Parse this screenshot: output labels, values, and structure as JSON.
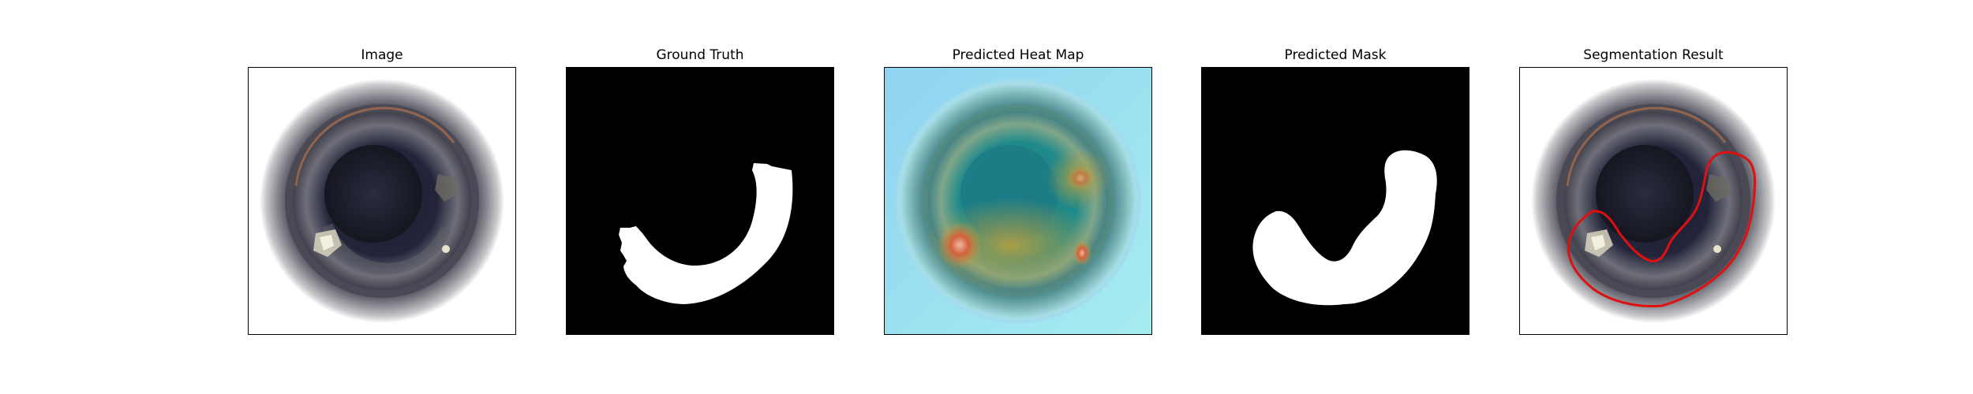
{
  "figure": {
    "panels": [
      {
        "id": "image",
        "title": "Image"
      },
      {
        "id": "ground-truth",
        "title": "Ground Truth"
      },
      {
        "id": "heat-map",
        "title": "Predicted Heat Map"
      },
      {
        "id": "mask",
        "title": "Predicted Mask"
      },
      {
        "id": "segmentation",
        "title": "Segmentation Result"
      }
    ]
  },
  "colors": {
    "frame_border": "#000000",
    "mask_foreground": "#ffffff",
    "mask_background": "#000000",
    "contour": "#e01010",
    "heatmap_low": "#8fd8f2",
    "heatmap_mid": "#1f8c8c",
    "heatmap_high": "#d2603a"
  }
}
